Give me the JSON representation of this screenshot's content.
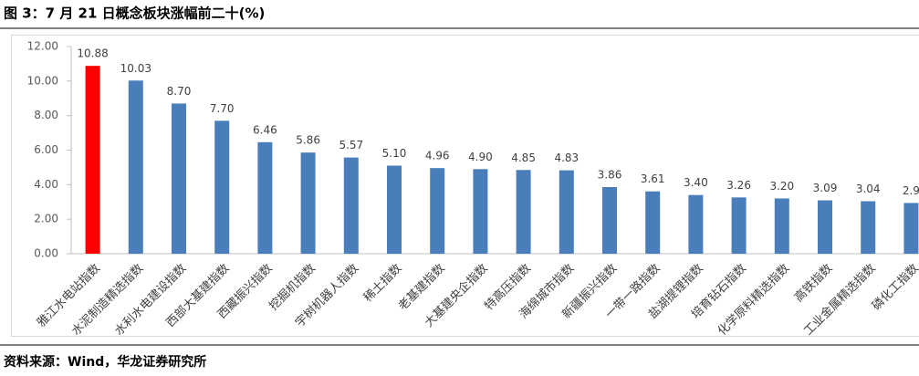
{
  "chart_data": {
    "type": "bar",
    "title": "图 3：7 月 21 日概念板块涨幅前二十(%)",
    "source": "资料来源：Wind，华龙证券研究所",
    "categories": [
      "雅江水电站指数",
      "水泥制造精选指数",
      "水利水电建设指数",
      "西部大基建指数",
      "西藏振兴指数",
      "挖掘机指数",
      "宇树机器人指数",
      "稀土指数",
      "老基建指数",
      "大基建央企指数",
      "特高压指数",
      "海绵城市指数",
      "新疆振兴指数",
      "一带一路指数",
      "盐湖提锂指数",
      "培育钻石指数",
      "化学原料精选指数",
      "高铁指数",
      "工业金属精选指数",
      "磷化工指数"
    ],
    "values": [
      10.88,
      10.03,
      8.7,
      7.7,
      6.46,
      5.86,
      5.57,
      5.1,
      4.96,
      4.9,
      4.85,
      4.83,
      3.86,
      3.61,
      3.4,
      3.26,
      3.2,
      3.09,
      3.04,
      2.94
    ],
    "value_labels": [
      "10.88",
      "10.03",
      "8.70",
      "7.70",
      "6.46",
      "5.86",
      "5.57",
      "5.10",
      "4.96",
      "4.90",
      "4.85",
      "4.83",
      "3.86",
      "3.61",
      "3.40",
      "3.26",
      "3.20",
      "3.09",
      "3.04",
      "2.9"
    ],
    "colors": [
      "#ff0000",
      "#4a7ebb",
      "#4a7ebb",
      "#4a7ebb",
      "#4a7ebb",
      "#4a7ebb",
      "#4a7ebb",
      "#4a7ebb",
      "#4a7ebb",
      "#4a7ebb",
      "#4a7ebb",
      "#4a7ebb",
      "#4a7ebb",
      "#4a7ebb",
      "#4a7ebb",
      "#4a7ebb",
      "#4a7ebb",
      "#4a7ebb",
      "#4a7ebb",
      "#4a7ebb"
    ],
    "ylim": [
      0,
      12
    ],
    "yticks": [
      {
        "value": 0,
        "label": "0.00"
      },
      {
        "value": 2,
        "label": "2.00"
      },
      {
        "value": 4,
        "label": "4.00"
      },
      {
        "value": 6,
        "label": "6.00"
      },
      {
        "value": 8,
        "label": "8.00"
      },
      {
        "value": 10,
        "label": "10.00"
      },
      {
        "value": 12,
        "label": "12.00"
      }
    ],
    "grid": false
  }
}
